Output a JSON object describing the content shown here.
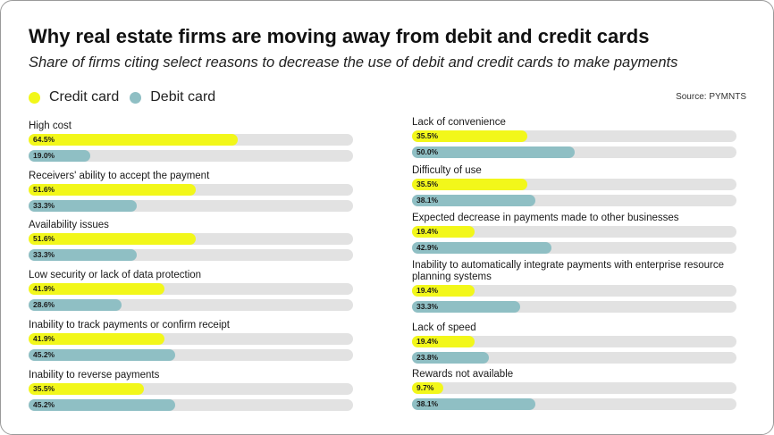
{
  "title": "Why real estate firms are moving away from debit and credit cards",
  "subtitle": "Share of firms citing select reasons to decrease the use of debit and credit cards to make payments",
  "source": "Source:  PYMNTS",
  "colors": {
    "credit": "#f2f71a",
    "debit": "#8fbfc4",
    "track": "#e2e2e2"
  },
  "chart_data": {
    "type": "bar",
    "orientation": "horizontal",
    "xlim": [
      0,
      100
    ],
    "unit": "%",
    "series": [
      {
        "name": "Credit card",
        "color": "#f2f71a"
      },
      {
        "name": "Debit card",
        "color": "#8fbfc4"
      }
    ],
    "categories": [
      {
        "label": "High cost",
        "credit": 64.5,
        "debit": 19.0,
        "credit_label": "64.5%",
        "debit_label": "19.0%"
      },
      {
        "label": "Receivers' ability to accept the payment",
        "credit": 51.6,
        "debit": 33.3,
        "credit_label": "51.6%",
        "debit_label": "33.3%"
      },
      {
        "label": "Availability issues",
        "credit": 51.6,
        "debit": 33.3,
        "credit_label": "51.6%",
        "debit_label": "33.3%"
      },
      {
        "label": "Low security or lack of data protection",
        "credit": 41.9,
        "debit": 28.6,
        "credit_label": "41.9%",
        "debit_label": "28.6%"
      },
      {
        "label": "Inability to track payments or confirm receipt",
        "credit": 41.9,
        "debit": 45.2,
        "credit_label": "41.9%",
        "debit_label": "45.2%"
      },
      {
        "label": "Inability to reverse payments",
        "credit": 35.5,
        "debit": 45.2,
        "credit_label": "35.5%",
        "debit_label": "45.2%"
      },
      {
        "label": "Lack of convenience",
        "credit": 35.5,
        "debit": 50.0,
        "credit_label": "35.5%",
        "debit_label": "50.0%"
      },
      {
        "label": "Difficulty of use",
        "credit": 35.5,
        "debit": 38.1,
        "credit_label": "35.5%",
        "debit_label": "38.1%"
      },
      {
        "label": "Expected decrease in payments made to other businesses",
        "credit": 19.4,
        "debit": 42.9,
        "credit_label": "19.4%",
        "debit_label": "42.9%"
      },
      {
        "label": "Inability to  automatically integrate payments with enterprise resource planning systems",
        "credit": 19.4,
        "debit": 33.3,
        "credit_label": "19.4%",
        "debit_label": "33.3%"
      },
      {
        "label": "Lack of speed",
        "credit": 19.4,
        "debit": 23.8,
        "credit_label": "19.4%",
        "debit_label": "23.8%"
      },
      {
        "label": "Rewards not available",
        "credit": 9.7,
        "debit": 38.1,
        "credit_label": "9.7%",
        "debit_label": "38.1%"
      }
    ]
  }
}
